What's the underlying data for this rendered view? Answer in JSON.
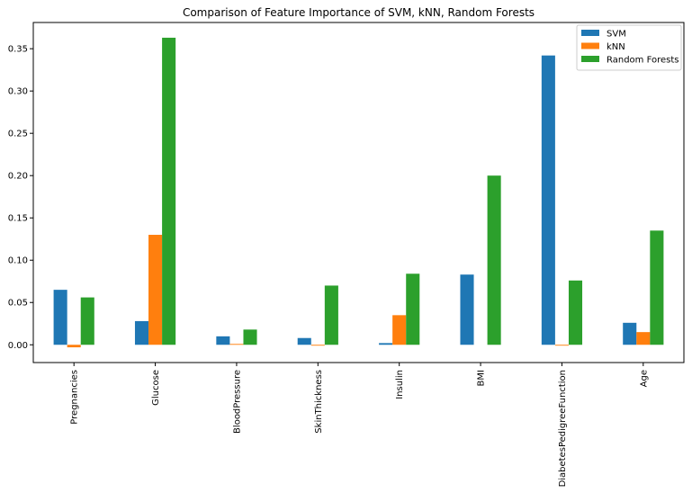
{
  "chart_data": {
    "type": "bar",
    "title": "Comparison of Feature Importance of SVM, kNN, Random Forests",
    "xlabel": "",
    "ylabel": "",
    "categories": [
      "Pregnancies",
      "Glucose",
      "BloodPressure",
      "SkinThickness",
      "Insulin",
      "BMI",
      "DiabetesPedigreeFunction",
      "Age"
    ],
    "series": [
      {
        "name": "SVM",
        "color": "#1f77b4",
        "values": [
          0.065,
          0.028,
          0.01,
          0.008,
          0.002,
          0.083,
          0.342,
          0.026
        ]
      },
      {
        "name": "kNN",
        "color": "#ff7f0e",
        "values": [
          -0.003,
          0.13,
          0.001,
          -0.001,
          0.035,
          0.0,
          -0.001,
          0.015
        ]
      },
      {
        "name": "Random Forests",
        "color": "#2ca02c",
        "values": [
          0.056,
          0.363,
          0.018,
          0.07,
          0.084,
          0.2,
          0.076,
          0.135
        ]
      }
    ],
    "ylim": [
      -0.021,
      0.381
    ],
    "yticks": [
      "0.00",
      "0.05",
      "0.10",
      "0.15",
      "0.20",
      "0.25",
      "0.30",
      "0.35"
    ],
    "legend": "top-right",
    "grid": false
  }
}
